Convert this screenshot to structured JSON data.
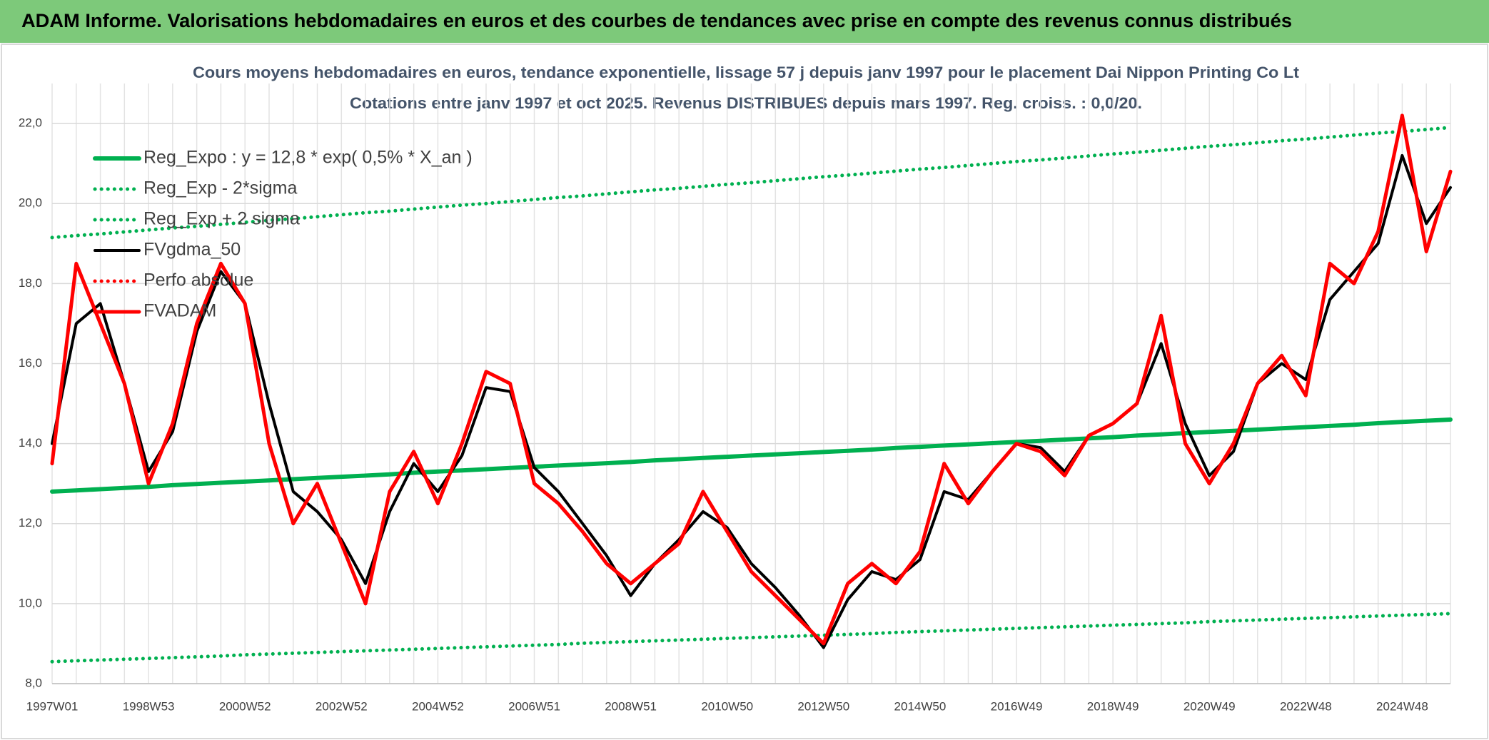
{
  "header": {
    "title": "ADAM Informe. Valorisations hebdomadaires en euros et des courbes de tendances avec prise en compte des revenus connus distribués"
  },
  "chart_data": {
    "type": "line",
    "title": "Cours moyens hebdomadaires en euros, tendance exponentielle, lissage 57 j depuis janv 1997 pour le placement Dai Nippon Printing Co Lt",
    "subtitle": "Cotations entre janv 1997 et oct 2025. Revenus DISTRIBUES depuis mars 1997. Reg. croiss. : 0,0/20.",
    "categories": [
      "1997W01",
      null,
      null,
      null,
      "1998W53",
      null,
      null,
      null,
      "2000W52",
      null,
      null,
      null,
      "2002W52",
      null,
      null,
      null,
      "2004W52",
      null,
      null,
      null,
      "2006W51",
      null,
      null,
      null,
      "2008W51",
      null,
      null,
      null,
      "2010W50",
      null,
      null,
      null,
      "2012W50",
      null,
      null,
      null,
      "2014W50",
      null,
      null,
      null,
      "2016W49",
      null,
      null,
      null,
      "2018W49",
      null,
      null,
      null,
      "2020W49",
      null,
      null,
      null,
      "2022W48",
      null,
      null,
      null,
      "2024W48",
      null,
      null
    ],
    "ylim": [
      8,
      23
    ],
    "yticks": [
      {
        "value": 8,
        "label": "8,0"
      },
      {
        "value": 10,
        "label": "10,0"
      },
      {
        "value": 12,
        "label": "12,0"
      },
      {
        "value": 14,
        "label": "14,0"
      },
      {
        "value": 16,
        "label": "16,0"
      },
      {
        "value": 18,
        "label": "18,0"
      },
      {
        "value": 20,
        "label": "20,0"
      },
      {
        "value": 22,
        "label": "22,0"
      }
    ],
    "grid": true,
    "legend": "top-left",
    "series": [
      {
        "name": "Reg_Expo : y = 12,8 * exp( 0,5% *  X_an )",
        "color": "#00b050",
        "line_style": "solid",
        "values": [
          12.8,
          12.83,
          12.86,
          12.89,
          12.92,
          12.96,
          12.99,
          13.02,
          13.05,
          13.08,
          13.11,
          13.14,
          13.17,
          13.2,
          13.23,
          13.27,
          13.3,
          13.33,
          13.36,
          13.39,
          13.42,
          13.45,
          13.48,
          13.51,
          13.54,
          13.58,
          13.61,
          13.64,
          13.67,
          13.7,
          13.73,
          13.76,
          13.79,
          13.82,
          13.85,
          13.89,
          13.92,
          13.95,
          13.98,
          14.01,
          14.04,
          14.07,
          14.1,
          14.13,
          14.16,
          14.2,
          14.23,
          14.26,
          14.29,
          14.32,
          14.35,
          14.38,
          14.41,
          14.44,
          14.47,
          14.51,
          14.54,
          14.57,
          14.6
        ]
      },
      {
        "name": "Reg_Exp - 2*sigma",
        "color": "#00b050",
        "line_style": "dotted",
        "values": [
          8.55,
          8.57,
          8.59,
          8.61,
          8.63,
          8.65,
          8.67,
          8.69,
          8.72,
          8.74,
          8.76,
          8.78,
          8.8,
          8.82,
          8.84,
          8.86,
          8.88,
          8.9,
          8.92,
          8.94,
          8.96,
          8.98,
          9.01,
          9.03,
          9.05,
          9.07,
          9.09,
          9.11,
          9.13,
          9.15,
          9.17,
          9.19,
          9.21,
          9.23,
          9.25,
          9.28,
          9.3,
          9.32,
          9.34,
          9.36,
          9.38,
          9.4,
          9.42,
          9.44,
          9.46,
          9.48,
          9.5,
          9.52,
          9.55,
          9.57,
          9.59,
          9.61,
          9.63,
          9.65,
          9.67,
          9.69,
          9.71,
          9.73,
          9.75
        ]
      },
      {
        "name": "Reg_Exp + 2 sigma",
        "color": "#00b050",
        "line_style": "dotted",
        "values": [
          19.15,
          19.2,
          19.24,
          19.29,
          19.34,
          19.39,
          19.43,
          19.48,
          19.53,
          19.58,
          19.62,
          19.67,
          19.72,
          19.77,
          19.81,
          19.86,
          19.91,
          19.96,
          20.0,
          20.05,
          20.1,
          20.15,
          20.19,
          20.24,
          20.29,
          20.34,
          20.38,
          20.43,
          20.48,
          20.52,
          20.57,
          20.62,
          20.67,
          20.71,
          20.76,
          20.81,
          20.86,
          20.9,
          20.95,
          21.0,
          21.05,
          21.09,
          21.14,
          21.19,
          21.24,
          21.28,
          21.33,
          21.38,
          21.43,
          21.47,
          21.52,
          21.57,
          21.61,
          21.66,
          21.71,
          21.76,
          21.8,
          21.85,
          21.9
        ]
      },
      {
        "name": "FVgdma_50",
        "color": "#000000",
        "line_style": "solid",
        "values": [
          14.0,
          17.0,
          17.5,
          15.5,
          13.3,
          14.3,
          16.8,
          18.3,
          17.5,
          15.0,
          12.8,
          12.3,
          11.6,
          10.5,
          12.3,
          13.5,
          12.8,
          13.7,
          15.4,
          15.3,
          13.4,
          12.8,
          12.0,
          11.2,
          10.2,
          11.0,
          11.6,
          12.3,
          11.9,
          11.0,
          10.4,
          9.7,
          8.9,
          10.1,
          10.8,
          10.6,
          11.1,
          12.8,
          12.6,
          13.3,
          14.0,
          13.9,
          13.3,
          14.2,
          14.5,
          15.0,
          16.5,
          14.5,
          13.2,
          13.8,
          15.5,
          16.0,
          15.6,
          17.6,
          18.3,
          19.0,
          21.2,
          19.5,
          20.4
        ]
      },
      {
        "name": "Perfo absolue",
        "color": "#ff0000",
        "line_style": "dotted",
        "values": [
          null,
          null,
          null,
          null,
          null,
          null,
          null,
          null,
          null,
          null,
          null,
          null,
          null,
          null,
          null,
          null,
          null,
          null,
          null,
          null,
          null,
          null,
          null,
          null,
          null,
          null,
          null,
          null,
          null,
          null,
          null,
          null,
          null,
          null,
          null,
          null,
          null,
          null,
          null,
          null,
          null,
          null,
          null,
          null,
          null,
          null,
          null,
          null,
          null,
          null,
          null,
          null,
          null,
          null,
          null,
          null,
          null,
          null,
          null
        ]
      },
      {
        "name": "FVADAM",
        "color": "#ff0000",
        "line_style": "solid",
        "values": [
          13.5,
          18.5,
          17.0,
          15.5,
          13.0,
          14.5,
          17.0,
          18.5,
          17.5,
          14.0,
          12.0,
          13.0,
          11.5,
          10.0,
          12.8,
          13.8,
          12.5,
          14.0,
          15.8,
          15.5,
          13.0,
          12.5,
          11.8,
          11.0,
          10.5,
          11.0,
          11.5,
          12.8,
          11.8,
          10.8,
          10.2,
          9.6,
          9.0,
          10.5,
          11.0,
          10.5,
          11.3,
          13.5,
          12.5,
          13.3,
          14.0,
          13.8,
          13.2,
          14.2,
          14.5,
          15.0,
          17.2,
          14.0,
          13.0,
          14.0,
          15.5,
          16.2,
          15.2,
          18.5,
          18.0,
          19.3,
          22.2,
          18.8,
          20.8
        ]
      }
    ]
  }
}
